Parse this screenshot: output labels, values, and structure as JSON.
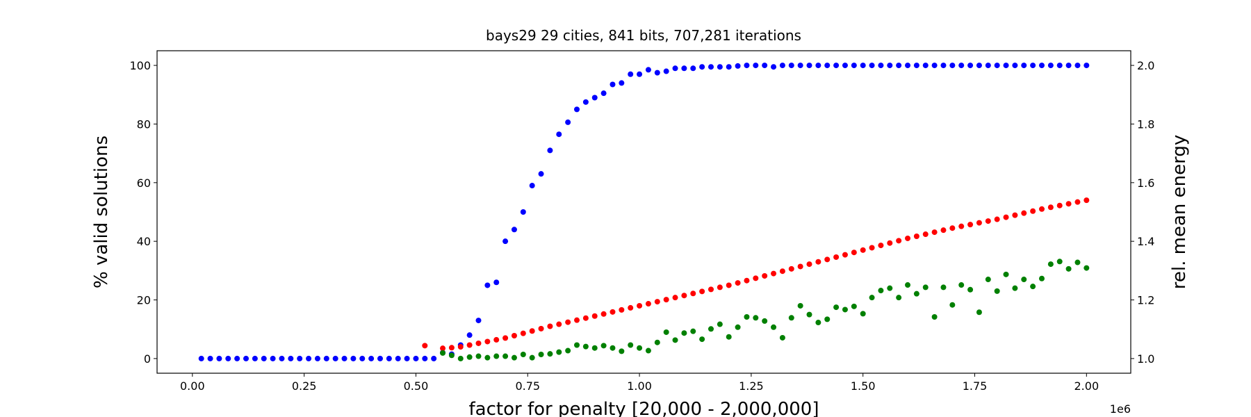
{
  "chart_data": {
    "type": "scatter",
    "title": "bays29 29 cities, 841 bits, 707,281 iterations",
    "xlabel": "factor for penalty [20,000 - 2,000,000]",
    "x_offset_label": "1e6",
    "ylabel": "% valid solutions",
    "ylabel_color": "blue",
    "y2label": "rel. mean energy",
    "y2label_color": "red",
    "x": [
      20000,
      40000,
      60000,
      80000,
      100000,
      120000,
      140000,
      160000,
      180000,
      200000,
      220000,
      240000,
      260000,
      280000,
      300000,
      320000,
      340000,
      360000,
      380000,
      400000,
      420000,
      440000,
      460000,
      480000,
      500000,
      520000,
      540000,
      560000,
      580000,
      600000,
      620000,
      640000,
      660000,
      680000,
      700000,
      720000,
      740000,
      760000,
      780000,
      800000,
      820000,
      840000,
      860000,
      880000,
      900000,
      920000,
      940000,
      960000,
      980000,
      1000000,
      1020000,
      1040000,
      1060000,
      1080000,
      1100000,
      1120000,
      1140000,
      1160000,
      1180000,
      1200000,
      1220000,
      1240000,
      1260000,
      1280000,
      1300000,
      1320000,
      1340000,
      1360000,
      1380000,
      1400000,
      1420000,
      1440000,
      1460000,
      1480000,
      1500000,
      1520000,
      1540000,
      1560000,
      1580000,
      1600000,
      1620000,
      1640000,
      1660000,
      1680000,
      1700000,
      1720000,
      1740000,
      1760000,
      1780000,
      1800000,
      1820000,
      1840000,
      1860000,
      1880000,
      1900000,
      1920000,
      1940000,
      1960000,
      1980000,
      2000000
    ],
    "series": [
      {
        "color": "blue",
        "axis": "y",
        "values": [
          0,
          0,
          0,
          0,
          0,
          0,
          0,
          0,
          0,
          0,
          0,
          0,
          0,
          0,
          0,
          0,
          0,
          0,
          0,
          0,
          0,
          0,
          0,
          0,
          0,
          0,
          0,
          2,
          1.5,
          4.6,
          8,
          13,
          25,
          26,
          40,
          44,
          50,
          59,
          63,
          71,
          76.5,
          80.6,
          85,
          87.5,
          89,
          90.5,
          93.5,
          94,
          97,
          97,
          98.5,
          97.5,
          98,
          99,
          99,
          99,
          99.5,
          99.5,
          99.5,
          99.5,
          99.8,
          100,
          100,
          100,
          99.5,
          100,
          100,
          100,
          100,
          100,
          100,
          100,
          100,
          100,
          100,
          100,
          100,
          100,
          100,
          100,
          100,
          100,
          100,
          100,
          100,
          100,
          100,
          100,
          100,
          100,
          100,
          100,
          100,
          100,
          100,
          100,
          100,
          100,
          100,
          100
        ]
      },
      {
        "color": "red",
        "axis": "y2",
        "values": [
          null,
          null,
          null,
          null,
          null,
          null,
          null,
          null,
          null,
          null,
          null,
          null,
          null,
          null,
          null,
          null,
          null,
          null,
          null,
          null,
          null,
          null,
          null,
          null,
          null,
          1.044,
          null,
          1.035,
          1.037,
          1.04,
          1.046,
          1.052,
          1.058,
          1.064,
          1.07,
          1.078,
          1.086,
          1.094,
          1.102,
          1.11,
          1.117,
          1.124,
          1.131,
          1.138,
          1.145,
          1.152,
          1.159,
          1.166,
          1.173,
          1.18,
          1.187,
          1.194,
          1.201,
          1.208,
          1.215,
          1.222,
          1.229,
          1.236,
          1.243,
          1.25,
          1.258,
          1.266,
          1.274,
          1.282,
          1.29,
          1.298,
          1.306,
          1.314,
          1.322,
          1.33,
          1.338,
          1.346,
          1.354,
          1.362,
          1.37,
          1.378,
          1.386,
          1.394,
          1.402,
          1.41,
          1.417,
          1.424,
          1.431,
          1.438,
          1.445,
          1.451,
          1.457,
          1.463,
          1.469,
          1.475,
          1.482,
          1.489,
          1.496,
          1.503,
          1.51,
          1.516,
          1.522,
          1.528,
          1.534,
          1.54
        ]
      },
      {
        "color": "green",
        "axis": "y2",
        "values": [
          null,
          null,
          null,
          null,
          null,
          null,
          null,
          null,
          null,
          null,
          null,
          null,
          null,
          null,
          null,
          null,
          null,
          null,
          null,
          null,
          null,
          null,
          null,
          null,
          null,
          null,
          null,
          1.019,
          1.011,
          1.0,
          1.005,
          1.008,
          1.003,
          1.008,
          1.008,
          1.003,
          1.014,
          1.003,
          1.014,
          1.016,
          1.022,
          1.027,
          1.046,
          1.041,
          1.036,
          1.044,
          1.036,
          1.025,
          1.046,
          1.036,
          1.027,
          1.055,
          1.09,
          1.063,
          1.087,
          1.093,
          1.066,
          1.101,
          1.117,
          1.074,
          1.107,
          1.142,
          1.139,
          1.128,
          1.107,
          1.071,
          1.139,
          1.18,
          1.15,
          1.123,
          1.134,
          1.175,
          1.167,
          1.178,
          1.153,
          1.208,
          1.232,
          1.24,
          1.208,
          1.251,
          1.221,
          1.243,
          1.142,
          1.243,
          1.183,
          1.251,
          1.235,
          1.158,
          1.27,
          1.23,
          1.287,
          1.24,
          1.27,
          1.246,
          1.273,
          1.322,
          1.331,
          1.306,
          1.328,
          1.309
        ]
      }
    ],
    "xlim": [
      -79000,
      2099000
    ],
    "xticks": [
      {
        "value": 0,
        "label": "0.00"
      },
      {
        "value": 250000,
        "label": "0.25"
      },
      {
        "value": 500000,
        "label": "0.50"
      },
      {
        "value": 750000,
        "label": "0.75"
      },
      {
        "value": 1000000,
        "label": "1.00"
      },
      {
        "value": 1250000,
        "label": "1.25"
      },
      {
        "value": 1500000,
        "label": "1.50"
      },
      {
        "value": 1750000,
        "label": "1.75"
      },
      {
        "value": 2000000,
        "label": "2.00"
      }
    ],
    "ylim": [
      -5,
      105
    ],
    "yticks": [
      0,
      20,
      40,
      60,
      80,
      100
    ],
    "y2lim": [
      0.95,
      2.05
    ],
    "y2ticks": [
      {
        "value": 1,
        "label": "1.0"
      },
      1.2,
      1.4,
      1.6,
      1.8,
      {
        "value": 2,
        "label": "2.0"
      }
    ],
    "grid": false
  }
}
